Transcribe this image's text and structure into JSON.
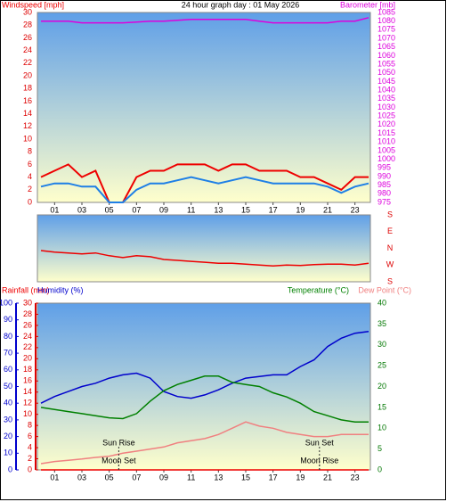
{
  "chart_data": [
    {
      "type": "line",
      "title": "24 hour graph day : 01 May 2026",
      "x": [
        0,
        1,
        2,
        3,
        4,
        5,
        6,
        7,
        8,
        9,
        10,
        11,
        12,
        13,
        14,
        15,
        16,
        17,
        18,
        19,
        20,
        21,
        22,
        23,
        24
      ],
      "xlim": [
        0,
        24
      ],
      "xticks": [
        {
          "value": 1,
          "label": "01"
        },
        {
          "value": 3,
          "label": "03"
        },
        {
          "value": 5,
          "label": "05"
        },
        {
          "value": 7,
          "label": "07"
        },
        {
          "value": 9,
          "label": "09"
        },
        {
          "value": 11,
          "label": "11"
        },
        {
          "value": 13,
          "label": "13"
        },
        {
          "value": 15,
          "label": "15"
        },
        {
          "value": 17,
          "label": "17"
        },
        {
          "value": 19,
          "label": "19"
        },
        {
          "value": 21,
          "label": "21"
        },
        {
          "value": 23,
          "label": "23"
        }
      ],
      "ylim": [
        0,
        30
      ],
      "yticks": [
        0,
        2,
        4,
        6,
        8,
        10,
        12,
        14,
        16,
        18,
        20,
        22,
        24,
        26,
        28,
        30
      ],
      "yaxis_color": "#dd0000",
      "y2lim": [
        975,
        1085
      ],
      "y2ticks": [
        975,
        980,
        985,
        990,
        995,
        1000,
        1005,
        1010,
        1015,
        1020,
        1025,
        1030,
        1035,
        1040,
        1045,
        1050,
        1055,
        1060,
        1065,
        1070,
        1075,
        1080,
        1085
      ],
      "y2axis_color": "#dd00dd",
      "series": [
        {
          "name": "Windspeed [mph]",
          "color": "#ee0000",
          "values": [
            4,
            5,
            6,
            4,
            5,
            0,
            0,
            4,
            5,
            5,
            6,
            6,
            6,
            5,
            6,
            6,
            5,
            5,
            5,
            4,
            4,
            3,
            2,
            4,
            4
          ]
        },
        {
          "color": "#1e7fe6",
          "values": [
            2.5,
            3,
            3,
            2.5,
            2.5,
            0,
            0,
            2,
            3,
            3,
            3.5,
            4,
            3.5,
            3,
            3.5,
            4,
            3.5,
            3,
            3,
            3,
            3,
            2.5,
            1.5,
            2.5,
            3
          ]
        },
        {
          "name": "Barometer [mb]",
          "color": "#dd00dd",
          "axis": "y2",
          "values": [
            1080,
            1080,
            1080,
            1079,
            1079,
            1079,
            1079,
            1079.5,
            1080,
            1080,
            1080.5,
            1081,
            1081,
            1081,
            1081,
            1081,
            1080,
            1079,
            1079,
            1079,
            1079,
            1079,
            1080,
            1080,
            1082
          ]
        }
      ]
    },
    {
      "type": "line",
      "x": [
        0,
        1,
        2,
        3,
        4,
        5,
        6,
        7,
        8,
        9,
        10,
        11,
        12,
        13,
        14,
        15,
        16,
        17,
        18,
        19,
        20,
        21,
        22,
        23,
        24
      ],
      "xlim": [
        0,
        24
      ],
      "ylim": [
        0,
        360
      ],
      "yticks": [
        {
          "value": 0,
          "label": "S"
        },
        {
          "value": 90,
          "label": "W"
        },
        {
          "value": 180,
          "label": "N"
        },
        {
          "value": 270,
          "label": "E"
        },
        {
          "value": 360,
          "label": "S"
        }
      ],
      "yaxis_color": "#dd0000",
      "series": [
        {
          "color": "#ee0000",
          "values": [
            168,
            160,
            155,
            150,
            155,
            140,
            130,
            140,
            135,
            120,
            115,
            110,
            105,
            100,
            100,
            95,
            90,
            85,
            90,
            88,
            92,
            95,
            95,
            90,
            100
          ]
        }
      ]
    },
    {
      "type": "line",
      "x": [
        0,
        1,
        2,
        3,
        4,
        5,
        6,
        7,
        8,
        9,
        10,
        11,
        12,
        13,
        14,
        15,
        16,
        17,
        18,
        19,
        20,
        21,
        22,
        23,
        24
      ],
      "xlim": [
        0,
        24
      ],
      "xticks": [
        {
          "value": 1,
          "label": "01"
        },
        {
          "value": 3,
          "label": "03"
        },
        {
          "value": 5,
          "label": "05"
        },
        {
          "value": 7,
          "label": "07"
        },
        {
          "value": 9,
          "label": "09"
        },
        {
          "value": 11,
          "label": "11"
        },
        {
          "value": 13,
          "label": "13"
        },
        {
          "value": 15,
          "label": "15"
        },
        {
          "value": 17,
          "label": "17"
        },
        {
          "value": 19,
          "label": "19"
        },
        {
          "value": 21,
          "label": "21"
        },
        {
          "value": 23,
          "label": "23"
        }
      ],
      "ylim": [
        0,
        100
      ],
      "yticks": [
        0,
        10,
        20,
        30,
        40,
        50,
        60,
        70,
        80,
        90,
        100
      ],
      "yaxis_color": "#0000cc",
      "y3lim": [
        0,
        30
      ],
      "y3ticks": [
        0,
        2,
        4,
        6,
        8,
        10,
        12,
        14,
        16,
        18,
        20,
        22,
        24,
        26,
        28,
        30
      ],
      "y3axis_color": "#dd0000",
      "y2lim": [
        0,
        40
      ],
      "y2ticks": [
        0,
        5,
        10,
        15,
        20,
        25,
        30,
        35,
        40
      ],
      "y2axis_color": "#007700",
      "series": [
        {
          "name": "Rainfall (mm)",
          "color": "#ee0000",
          "axis": "y3",
          "values": [
            0,
            0,
            0,
            0,
            0,
            0,
            0,
            0,
            0,
            0,
            0,
            0,
            0,
            0,
            0,
            0,
            0,
            0,
            0,
            0,
            0,
            0,
            0,
            0,
            0
          ]
        },
        {
          "name": "Humidity (%)",
          "color": "#0000cc",
          "values": [
            40,
            44,
            47,
            50,
            52,
            55,
            57,
            58,
            55,
            47,
            44,
            43,
            45,
            48,
            52,
            55,
            56,
            57,
            57,
            62,
            66,
            74,
            79,
            82,
            83
          ]
        },
        {
          "name": "Temperature (°C)",
          "color": "#008000",
          "axis": "y2",
          "values": [
            15,
            14.5,
            14,
            13.5,
            13,
            12.5,
            12.3,
            13.5,
            16.5,
            19,
            20.5,
            21.5,
            22.5,
            22.5,
            21,
            20.5,
            20,
            18.5,
            17.5,
            16,
            14,
            13,
            12,
            11.5,
            11.5
          ]
        },
        {
          "name": "Dew Point (°C)",
          "color": "#f08080",
          "axis": "y2",
          "values": [
            1.5,
            2,
            2.3,
            2.6,
            3,
            3.3,
            4,
            4.5,
            5,
            5.5,
            6.5,
            7,
            7.5,
            8.5,
            10,
            11.5,
            10.5,
            10,
            9,
            8.5,
            8,
            8,
            8.5,
            8.5,
            8.5
          ]
        }
      ],
      "annotations": [
        {
          "text": "Sun Rise",
          "x": 5.7
        },
        {
          "text": "Moon Set",
          "x": 5.7
        },
        {
          "text": "Sun Set",
          "x": 20.4
        },
        {
          "text": "Moon Rise",
          "x": 20.4
        }
      ]
    }
  ]
}
